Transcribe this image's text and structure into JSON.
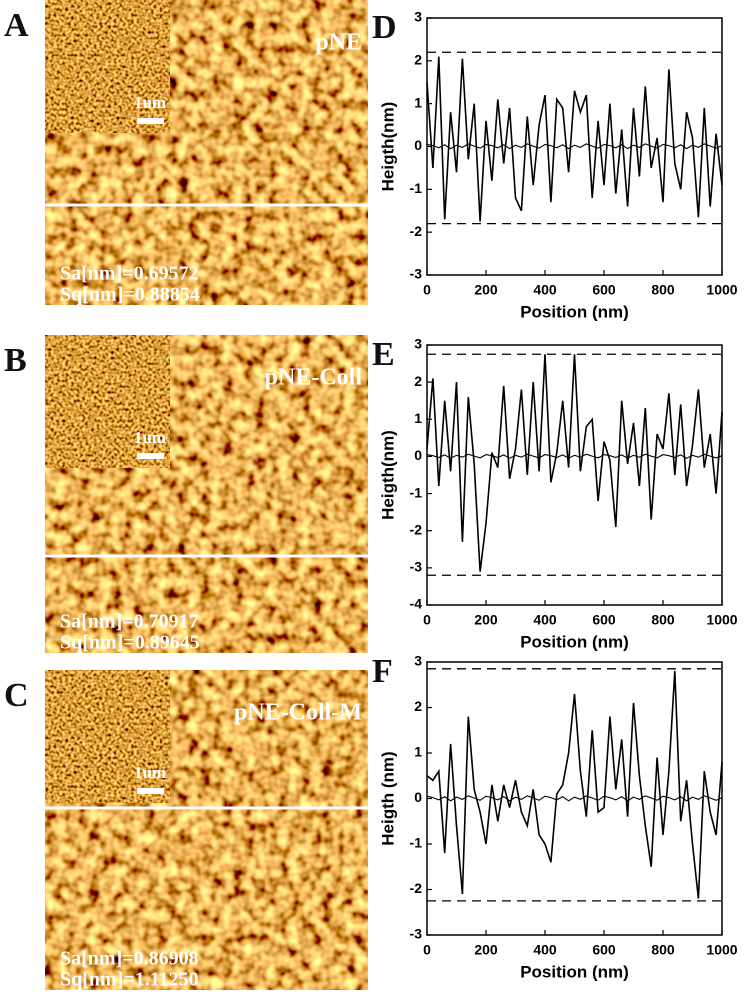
{
  "images": [
    {
      "letter": "A",
      "label": "pNE",
      "scale": "1um",
      "sa": "Sa[nm]=0.69572",
      "sq": "Sq[nm]=0.88854"
    },
    {
      "letter": "B",
      "label": "pNE-Coll",
      "scale": "1um",
      "sa": "Sa[nm]=0.70917",
      "sq": "Sq[nm]=0.89645"
    },
    {
      "letter": "C",
      "label": "pNE-Coll-M",
      "scale": "1um",
      "sa": "Sa[nm]=0.86908",
      "sq": "Sq[nm]=1.11250"
    }
  ],
  "chart_data": [
    {
      "type": "line",
      "panel": "D",
      "x_label": "Position (nm)",
      "y_label": "Heigth(nm)",
      "xlim": [
        0,
        1000
      ],
      "xticks": [
        0,
        200,
        400,
        600,
        800,
        1000
      ],
      "ylim": [
        -3,
        3
      ],
      "yticks": [
        -3,
        -2,
        -1,
        0,
        1,
        2,
        3
      ],
      "reference_lines": [
        2.2,
        -1.8
      ],
      "x": [
        0,
        20,
        40,
        60,
        80,
        100,
        120,
        140,
        160,
        180,
        200,
        220,
        240,
        260,
        280,
        300,
        320,
        340,
        360,
        380,
        400,
        420,
        440,
        460,
        480,
        500,
        520,
        540,
        560,
        580,
        600,
        620,
        640,
        660,
        680,
        700,
        720,
        740,
        760,
        780,
        800,
        820,
        840,
        860,
        880,
        900,
        920,
        940,
        960,
        980,
        1000
      ],
      "series": [
        {
          "color": "#000000",
          "values": [
            1.5,
            -0.5,
            2.1,
            -1.7,
            0.8,
            -0.6,
            2.05,
            -0.3,
            1.0,
            -1.75,
            0.6,
            -0.8,
            1.1,
            -0.4,
            0.9,
            -1.2,
            -1.5,
            0.7,
            -0.9,
            0.5,
            1.2,
            -1.3,
            1.1,
            0.9,
            -0.6,
            1.3,
            0.8,
            1.2,
            -1.2,
            0.6,
            -0.9,
            1.0,
            -1.1,
            0.4,
            -1.4,
            0.9,
            -0.7,
            1.4,
            -0.5,
            0.2,
            -1.3,
            1.8,
            -0.4,
            -1.0,
            0.8,
            0.2,
            -1.65,
            0.9,
            -1.4,
            0.3,
            -0.9
          ]
        },
        {
          "color": "#000000",
          "values": [
            0.05,
            0.02,
            -0.03,
            0.04,
            -0.05,
            0.03,
            -0.02,
            0.06,
            0.01,
            -0.04,
            0.05,
            0.02,
            -0.03,
            0.04,
            -0.05,
            0.03,
            -0.02,
            0.06,
            0.01,
            -0.04,
            0.05,
            0.02,
            -0.03,
            0.04,
            -0.05,
            0.03,
            -0.02,
            0.06,
            0.01,
            -0.04,
            0.05,
            0.02,
            -0.03,
            0.04,
            -0.05,
            0.03,
            -0.02,
            0.06,
            0.01,
            -0.04,
            0.05,
            0.02,
            -0.03,
            0.04,
            -0.05,
            0.03,
            -0.02,
            0.06,
            0.01,
            -0.04,
            0.02
          ]
        }
      ]
    },
    {
      "type": "line",
      "panel": "E",
      "x_label": "Position (nm)",
      "y_label": "Heigth(nm)",
      "xlim": [
        0,
        1000
      ],
      "xticks": [
        0,
        200,
        400,
        600,
        800,
        1000
      ],
      "ylim": [
        -4,
        3
      ],
      "yticks": [
        -4,
        -3,
        -2,
        -1,
        0,
        1,
        2,
        3
      ],
      "reference_lines": [
        2.75,
        -3.2
      ],
      "x": [
        0,
        20,
        40,
        60,
        80,
        100,
        120,
        140,
        160,
        180,
        200,
        220,
        240,
        260,
        280,
        300,
        320,
        340,
        360,
        380,
        400,
        420,
        440,
        460,
        480,
        500,
        520,
        540,
        560,
        580,
        600,
        620,
        640,
        660,
        680,
        700,
        720,
        740,
        760,
        780,
        800,
        820,
        840,
        860,
        880,
        900,
        920,
        940,
        960,
        980,
        1000
      ],
      "series": [
        {
          "color": "#000000",
          "values": [
            0.2,
            2.1,
            -0.8,
            1.5,
            -0.4,
            2.0,
            -2.3,
            1.6,
            -0.2,
            -3.1,
            -1.8,
            0.1,
            -0.3,
            1.9,
            -0.6,
            0.2,
            1.8,
            -0.5,
            2.0,
            -0.4,
            2.75,
            -0.7,
            0.1,
            1.5,
            -0.3,
            2.75,
            -0.4,
            0.8,
            1.0,
            -1.2,
            0.4,
            -0.1,
            -1.9,
            1.5,
            -0.2,
            0.9,
            -0.8,
            1.3,
            -1.7,
            0.6,
            0.2,
            1.7,
            -0.5,
            1.4,
            -0.8,
            0.3,
            1.8,
            -0.3,
            0.6,
            -1.0,
            1.2
          ]
        },
        {
          "color": "#000000",
          "values": [
            0.05,
            0.02,
            -0.03,
            0.04,
            -0.05,
            0.03,
            -0.02,
            0.06,
            0.01,
            -0.04,
            0.05,
            0.02,
            -0.03,
            0.04,
            -0.05,
            0.03,
            -0.02,
            0.06,
            0.01,
            -0.04,
            0.05,
            0.02,
            -0.03,
            0.04,
            -0.05,
            0.03,
            -0.02,
            0.06,
            0.01,
            -0.04,
            0.05,
            0.02,
            -0.03,
            0.04,
            -0.05,
            0.03,
            -0.02,
            0.06,
            0.01,
            -0.04,
            0.05,
            0.02,
            -0.03,
            0.04,
            -0.05,
            0.03,
            -0.02,
            0.06,
            0.01,
            -0.04,
            0.02
          ]
        }
      ]
    },
    {
      "type": "line",
      "panel": "F",
      "x_label": "Position (nm)",
      "y_label": "Heigth (nm)",
      "xlim": [
        0,
        1000
      ],
      "xticks": [
        0,
        200,
        400,
        600,
        800,
        1000
      ],
      "ylim": [
        -3,
        3
      ],
      "yticks": [
        -3,
        -2,
        -1,
        0,
        1,
        2,
        3
      ],
      "reference_lines": [
        2.85,
        -2.25
      ],
      "x": [
        0,
        20,
        40,
        60,
        80,
        100,
        120,
        140,
        160,
        180,
        200,
        220,
        240,
        260,
        280,
        300,
        320,
        340,
        360,
        380,
        400,
        420,
        440,
        460,
        480,
        500,
        520,
        540,
        560,
        580,
        600,
        620,
        640,
        660,
        680,
        700,
        720,
        740,
        760,
        780,
        800,
        820,
        840,
        860,
        880,
        900,
        920,
        940,
        960,
        980,
        1000
      ],
      "series": [
        {
          "color": "#000000",
          "values": [
            0.5,
            0.4,
            0.6,
            -1.2,
            1.2,
            -0.6,
            -2.1,
            1.8,
            0.2,
            -0.3,
            -1.0,
            0.3,
            -0.5,
            0.3,
            -0.2,
            0.4,
            -0.3,
            -0.6,
            0.2,
            -0.8,
            -1.0,
            -1.4,
            0.1,
            0.3,
            1.0,
            2.3,
            0.6,
            -0.4,
            1.5,
            -0.3,
            -0.2,
            1.8,
            0.2,
            1.3,
            -0.4,
            2.1,
            0.5,
            -0.6,
            -1.5,
            0.9,
            -0.8,
            0.6,
            2.8,
            -0.5,
            0.4,
            -1.0,
            -2.2,
            0.6,
            -0.3,
            -0.8,
            0.8
          ]
        },
        {
          "color": "#000000",
          "values": [
            0.05,
            0.02,
            -0.03,
            0.04,
            -0.05,
            0.03,
            -0.02,
            0.06,
            0.01,
            -0.04,
            0.05,
            0.02,
            -0.03,
            0.04,
            -0.05,
            0.03,
            -0.02,
            0.06,
            0.01,
            -0.04,
            0.05,
            0.02,
            -0.03,
            0.04,
            -0.05,
            0.03,
            -0.02,
            0.06,
            0.01,
            -0.04,
            0.05,
            0.02,
            -0.03,
            0.04,
            -0.05,
            0.03,
            -0.02,
            0.06,
            0.01,
            -0.04,
            0.05,
            0.02,
            -0.03,
            0.04,
            -0.05,
            0.03,
            -0.02,
            0.06,
            0.01,
            -0.04,
            0.02
          ]
        }
      ]
    }
  ]
}
